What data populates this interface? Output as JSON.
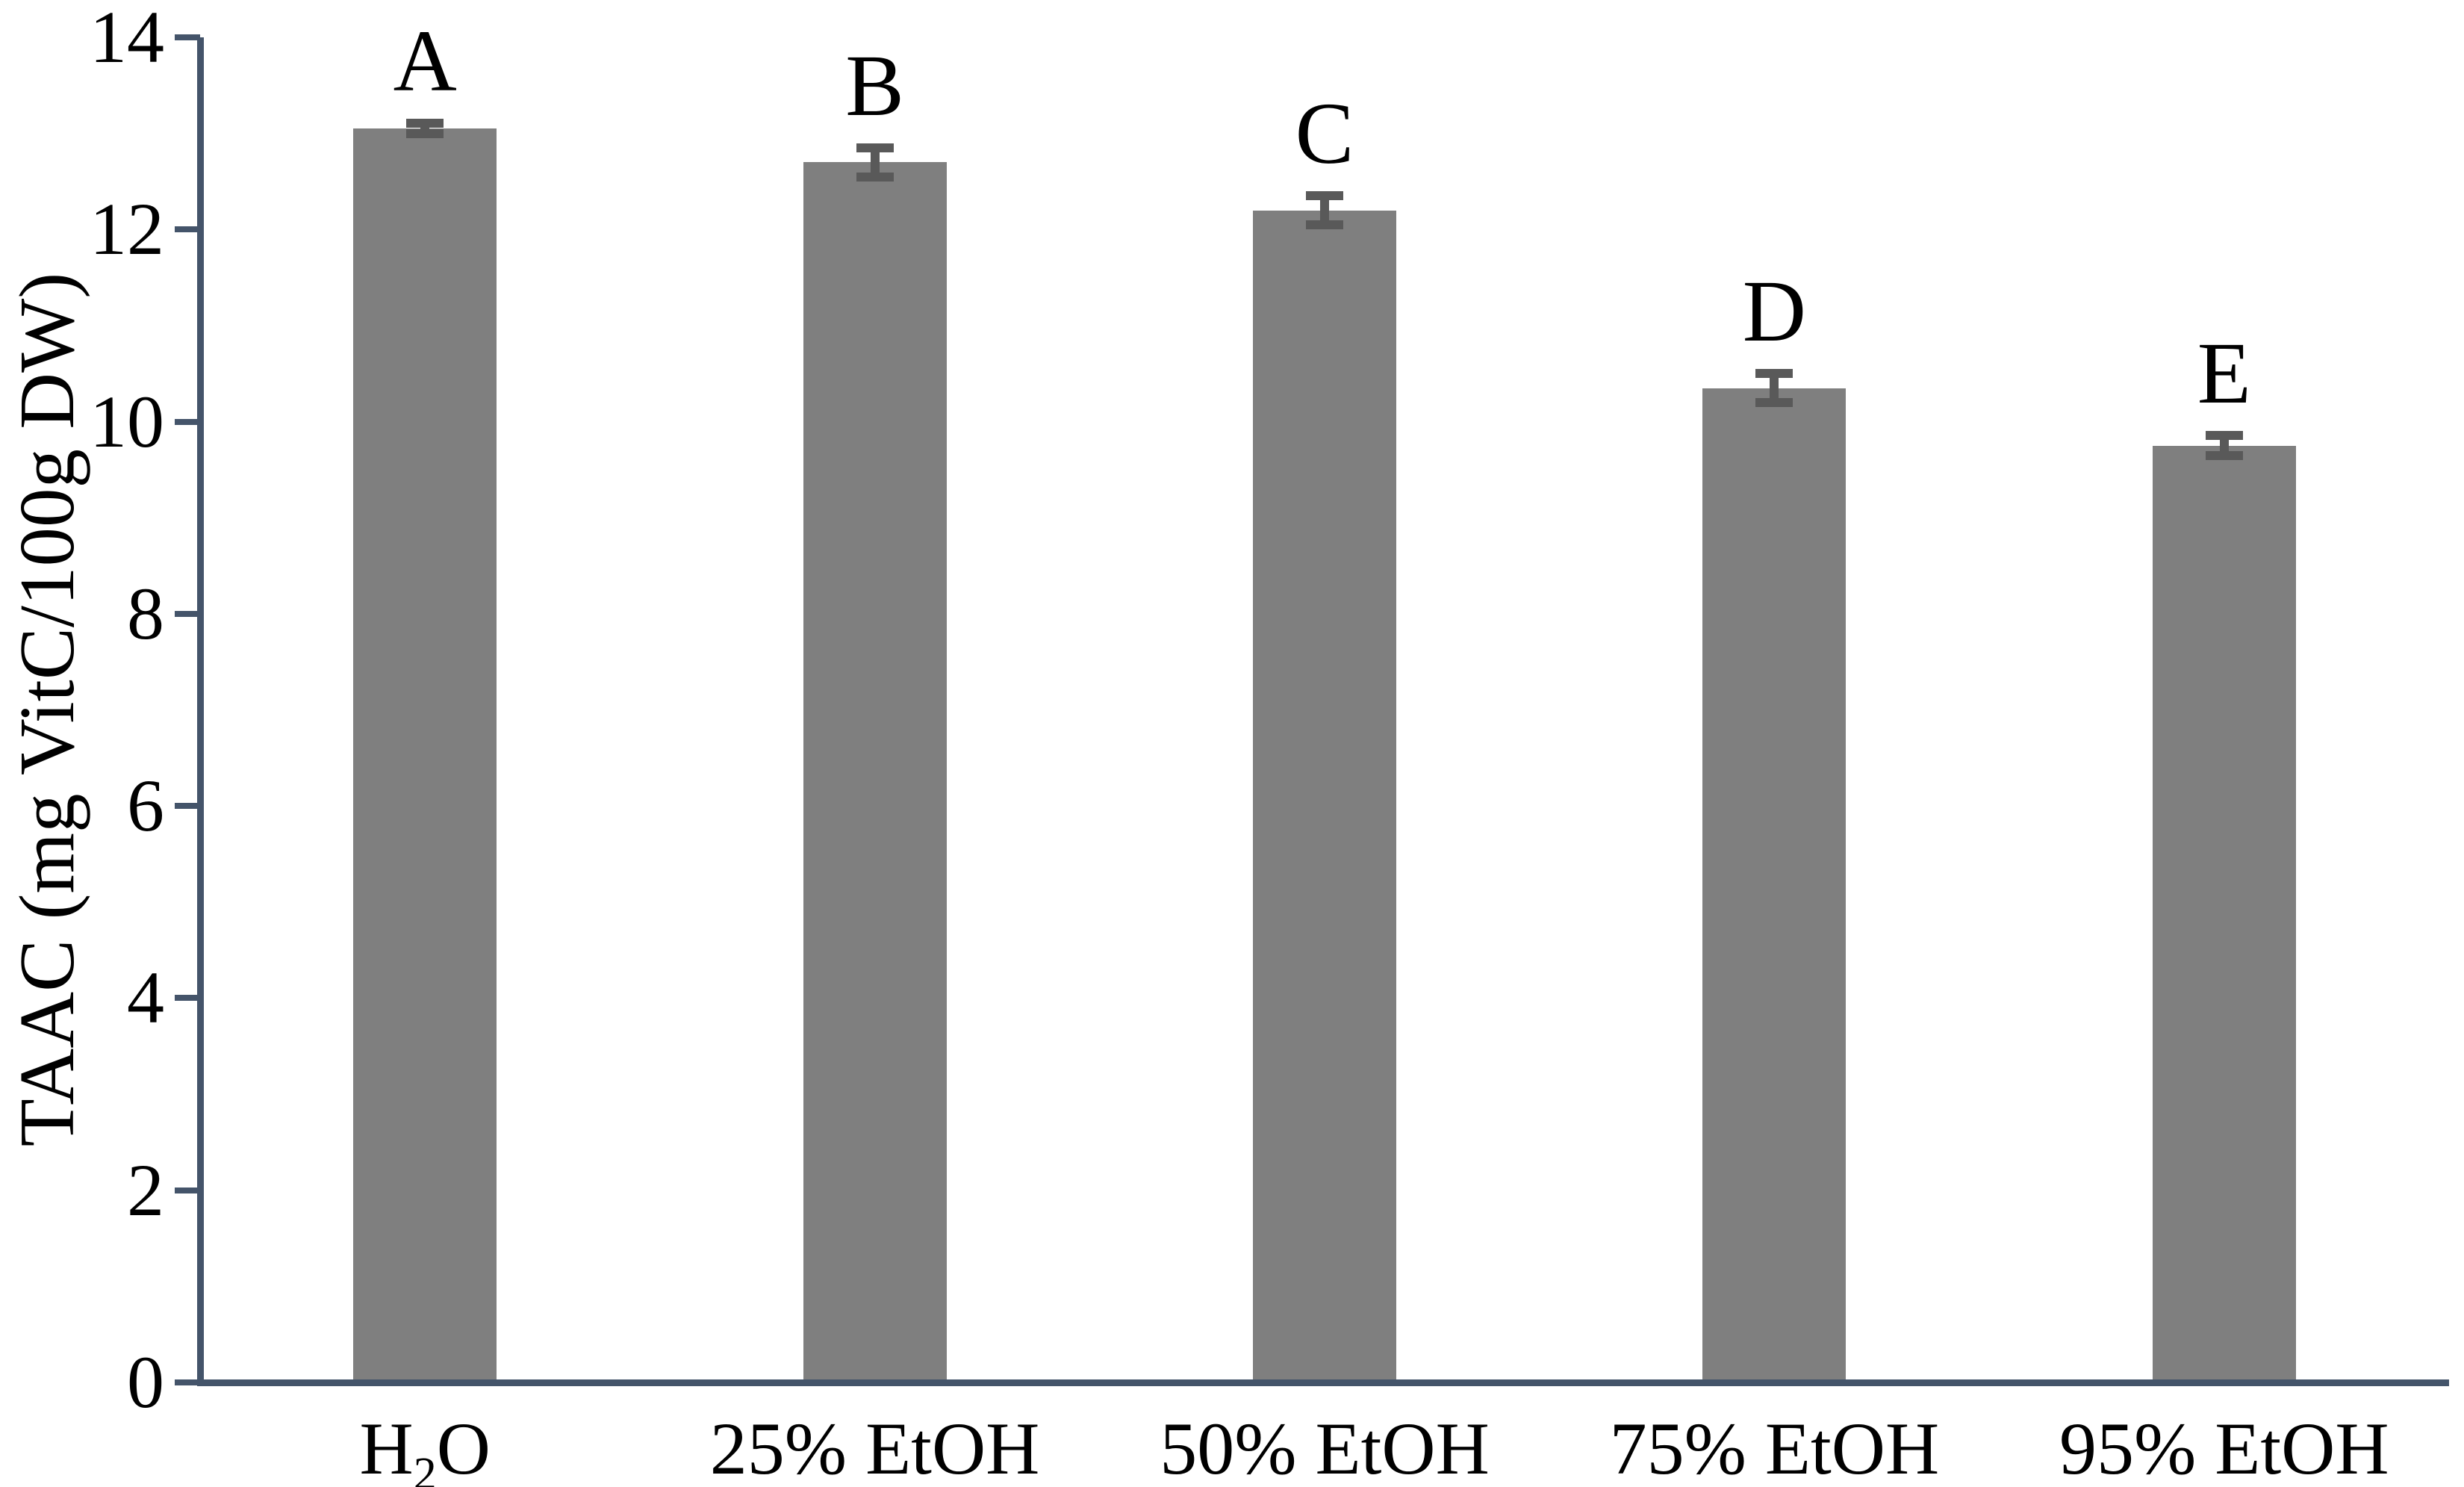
{
  "chart_data": {
    "type": "bar",
    "title": "",
    "ylabel": "TAAC (mg VitC/100g DW)",
    "xlabel": "",
    "categories": [
      "H₂O",
      "25% EtOH",
      "50% EtOH",
      "75% EtOH",
      "95% EtOH"
    ],
    "values": [
      13.05,
      12.7,
      12.2,
      10.35,
      9.75
    ],
    "errors": [
      0.1,
      0.2,
      0.2,
      0.2,
      0.15
    ],
    "bar_labels": [
      "A",
      "B",
      "C",
      "D",
      "E"
    ],
    "ylim": [
      0,
      14
    ],
    "yticks": [
      0,
      2,
      4,
      6,
      8,
      10,
      12,
      14
    ],
    "grid": false,
    "legend_position": "none",
    "colors": {
      "bar": "#7F7F7F",
      "error_bar": "#595959",
      "axis": "#44546A",
      "text": "#000000",
      "background": "#FFFFFF"
    }
  }
}
